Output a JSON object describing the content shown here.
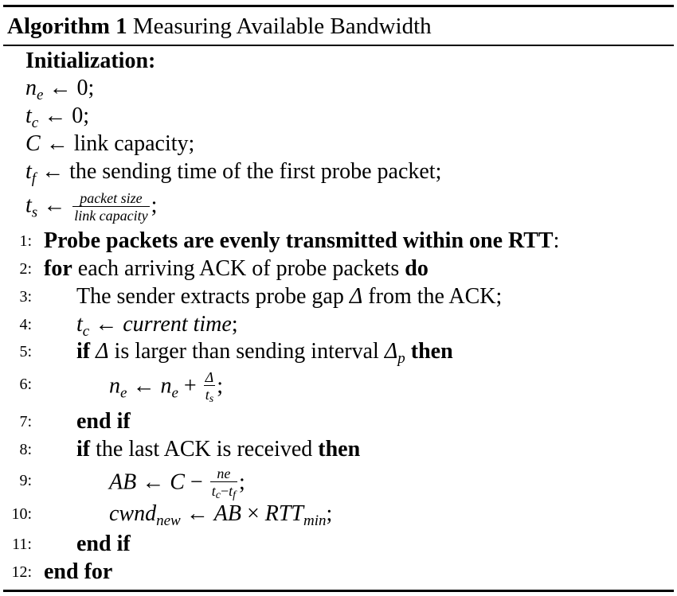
{
  "algorithm": {
    "label": "Algorithm 1",
    "title": "Measuring Available Bandwidth"
  },
  "init": {
    "heading": "Initialization:",
    "ne": {
      "var": "n",
      "sub": "e",
      "arrow": "←",
      "rhs": "0;"
    },
    "tc": {
      "var": "t",
      "sub": "c",
      "arrow": "←",
      "rhs": "0;"
    },
    "C": {
      "var": "C",
      "arrow": "←",
      "rhs": "link capacity;"
    },
    "tf": {
      "var": "t",
      "sub": "f",
      "arrow": "←",
      "rhs": "the sending time of the first probe packet;"
    },
    "ts": {
      "var": "t",
      "sub": "s",
      "arrow": "←",
      "num": "packet size",
      "den": "link capacity",
      "tail": ";"
    }
  },
  "steps": {
    "l1": {
      "num": "1:",
      "bold": "Probe packets are evenly transmitted within one RTT",
      "tail": ":"
    },
    "l2": {
      "num": "2:",
      "kw1": "for",
      "text": "each arriving ACK of probe packets",
      "kw2": "do"
    },
    "l3": {
      "num": "3:",
      "text": "The sender extracts probe gap",
      "sym": "Δ",
      "tail": "from the ACK;"
    },
    "l4": {
      "num": "4:",
      "var": "t",
      "sub": "c",
      "arrow": "←",
      "rhs": "current time",
      "tail": ";"
    },
    "l5": {
      "num": "5:",
      "kw1": "if",
      "sym": "Δ",
      "text": "is larger than sending interval",
      "sym2": "Δ",
      "sub2": "p",
      "kw2": "then"
    },
    "l6": {
      "num": "6:",
      "var": "n",
      "sub": "e",
      "arrow": "←",
      "var2": "n",
      "sub2": "e",
      "plus": "+",
      "num_f": "Δ",
      "den_var": "t",
      "den_sub": "s",
      "tail": ";"
    },
    "l7": {
      "num": "7:",
      "kw": "end if"
    },
    "l8": {
      "num": "8:",
      "kw1": "if",
      "text": "the last ACK is received",
      "kw2": "then"
    },
    "l9": {
      "num": "9:",
      "lhs": "AB",
      "arrow": "←",
      "C": "C",
      "minus": "−",
      "fn_var": "n",
      "fn_sub": "e",
      "fd_a": "t",
      "fd_a_sub": "c",
      "fd_minus": "−",
      "fd_b": "t",
      "fd_b_sub": "f",
      "tail": ";"
    },
    "l10": {
      "num": "10:",
      "lhs": "cwnd",
      "lhs_sub": "new",
      "arrow": "←",
      "a": "AB",
      "times": "×",
      "b": "RTT",
      "b_sub": "min",
      "tail": ";"
    },
    "l11": {
      "num": "11:",
      "kw": "end if"
    },
    "l12": {
      "num": "12:",
      "kw": "end for"
    }
  }
}
